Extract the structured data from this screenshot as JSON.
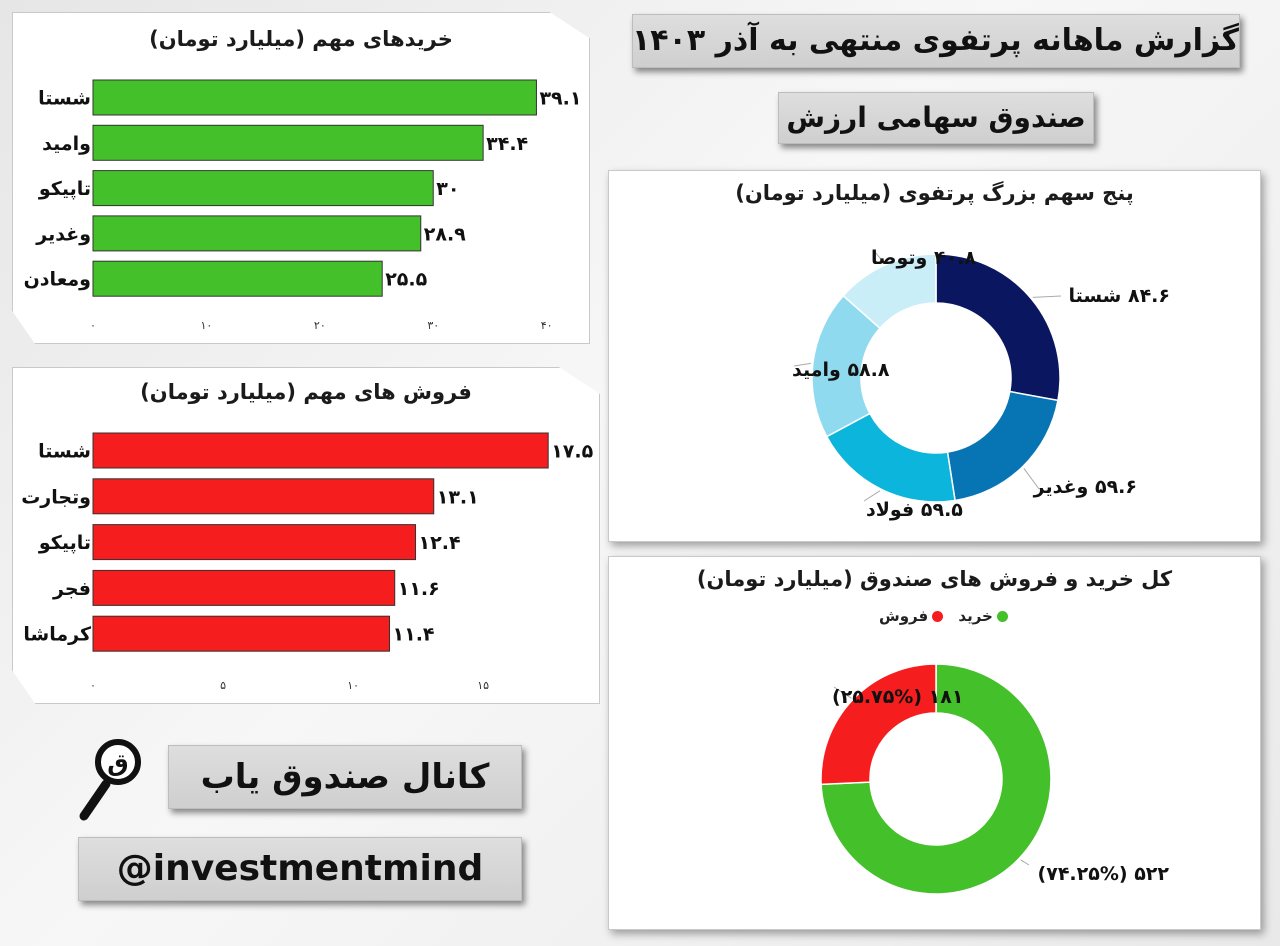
{
  "header": {
    "title": "گزارش ماهانه پرتفوی منتهی به آذر ۱۴۰۳",
    "subtitle": "صندوق سهامی ارزش"
  },
  "branding": {
    "channel": "کانال صندوق یاب",
    "handle": "@investmentmind",
    "icon": "magnifier-icon"
  },
  "colors": {
    "buy": "#44c02a",
    "sell": "#f51d1d",
    "pie": [
      "#0b1660",
      "#0774b4",
      "#0bb5dc",
      "#8fdaee",
      "#c9eef7"
    ]
  },
  "chart_data": [
    {
      "type": "bar",
      "title": "خریدهای مهم (میلیارد تومان)",
      "categories": [
        "شستا",
        "وامید",
        "تاپیکو",
        "وغدیر",
        "ومعادن"
      ],
      "values": [
        39.1,
        34.4,
        30,
        28.9,
        25.5
      ],
      "value_labels": [
        "۳۹.۱",
        "۳۴.۴",
        "۳۰",
        "۲۸.۹",
        "۲۵.۵"
      ],
      "xticks": [
        0,
        10,
        20,
        30,
        40
      ],
      "xtick_labels": [
        "۰",
        "۱۰",
        "۲۰",
        "۳۰",
        "۴۰"
      ],
      "xlim": [
        0,
        41
      ],
      "color": "#44c02a"
    },
    {
      "type": "bar",
      "title": "فروش های مهم (میلیارد تومان)",
      "categories": [
        "شستا",
        "وتجارت",
        "تاپیکو",
        "فجر",
        "کرماشا"
      ],
      "values": [
        17.5,
        13.1,
        12.4,
        11.6,
        11.4
      ],
      "value_labels": [
        "۱۷.۵",
        "۱۳.۱",
        "۱۲.۴",
        "۱۱.۶",
        "۱۱.۴"
      ],
      "xticks": [
        0,
        5,
        10,
        15
      ],
      "xtick_labels": [
        "۰",
        "۵",
        "۱۰",
        "۱۵"
      ],
      "xlim": [
        0,
        17.8
      ],
      "color": "#f51d1d"
    },
    {
      "type": "pie",
      "title": "پنج سهم بزرگ پرتفوی (میلیارد تومان)",
      "categories": [
        "شستا",
        "وغدیر",
        "فولاد",
        "وامید",
        "وتوصا"
      ],
      "values": [
        84.6,
        59.6,
        59.5,
        58.8,
        40.8
      ],
      "labels": [
        "۸۴.۶ شستا",
        "۵۹.۶ وغدیر",
        "۵۹.۵ فولاد",
        "۵۸.۸ وامید",
        "۴۰.۸ وتوصا"
      ]
    },
    {
      "type": "pie",
      "title": "کل خرید و فروش های صندوق (میلیارد تومان)",
      "categories": [
        "خرید",
        "فروش"
      ],
      "values": [
        522,
        181
      ],
      "labels": [
        "۵۲۲ (۷۴.۲۵%)",
        "۱۸۱ (۲۵.۷۵%)"
      ],
      "legend": [
        "خرید",
        "فروش"
      ]
    }
  ]
}
